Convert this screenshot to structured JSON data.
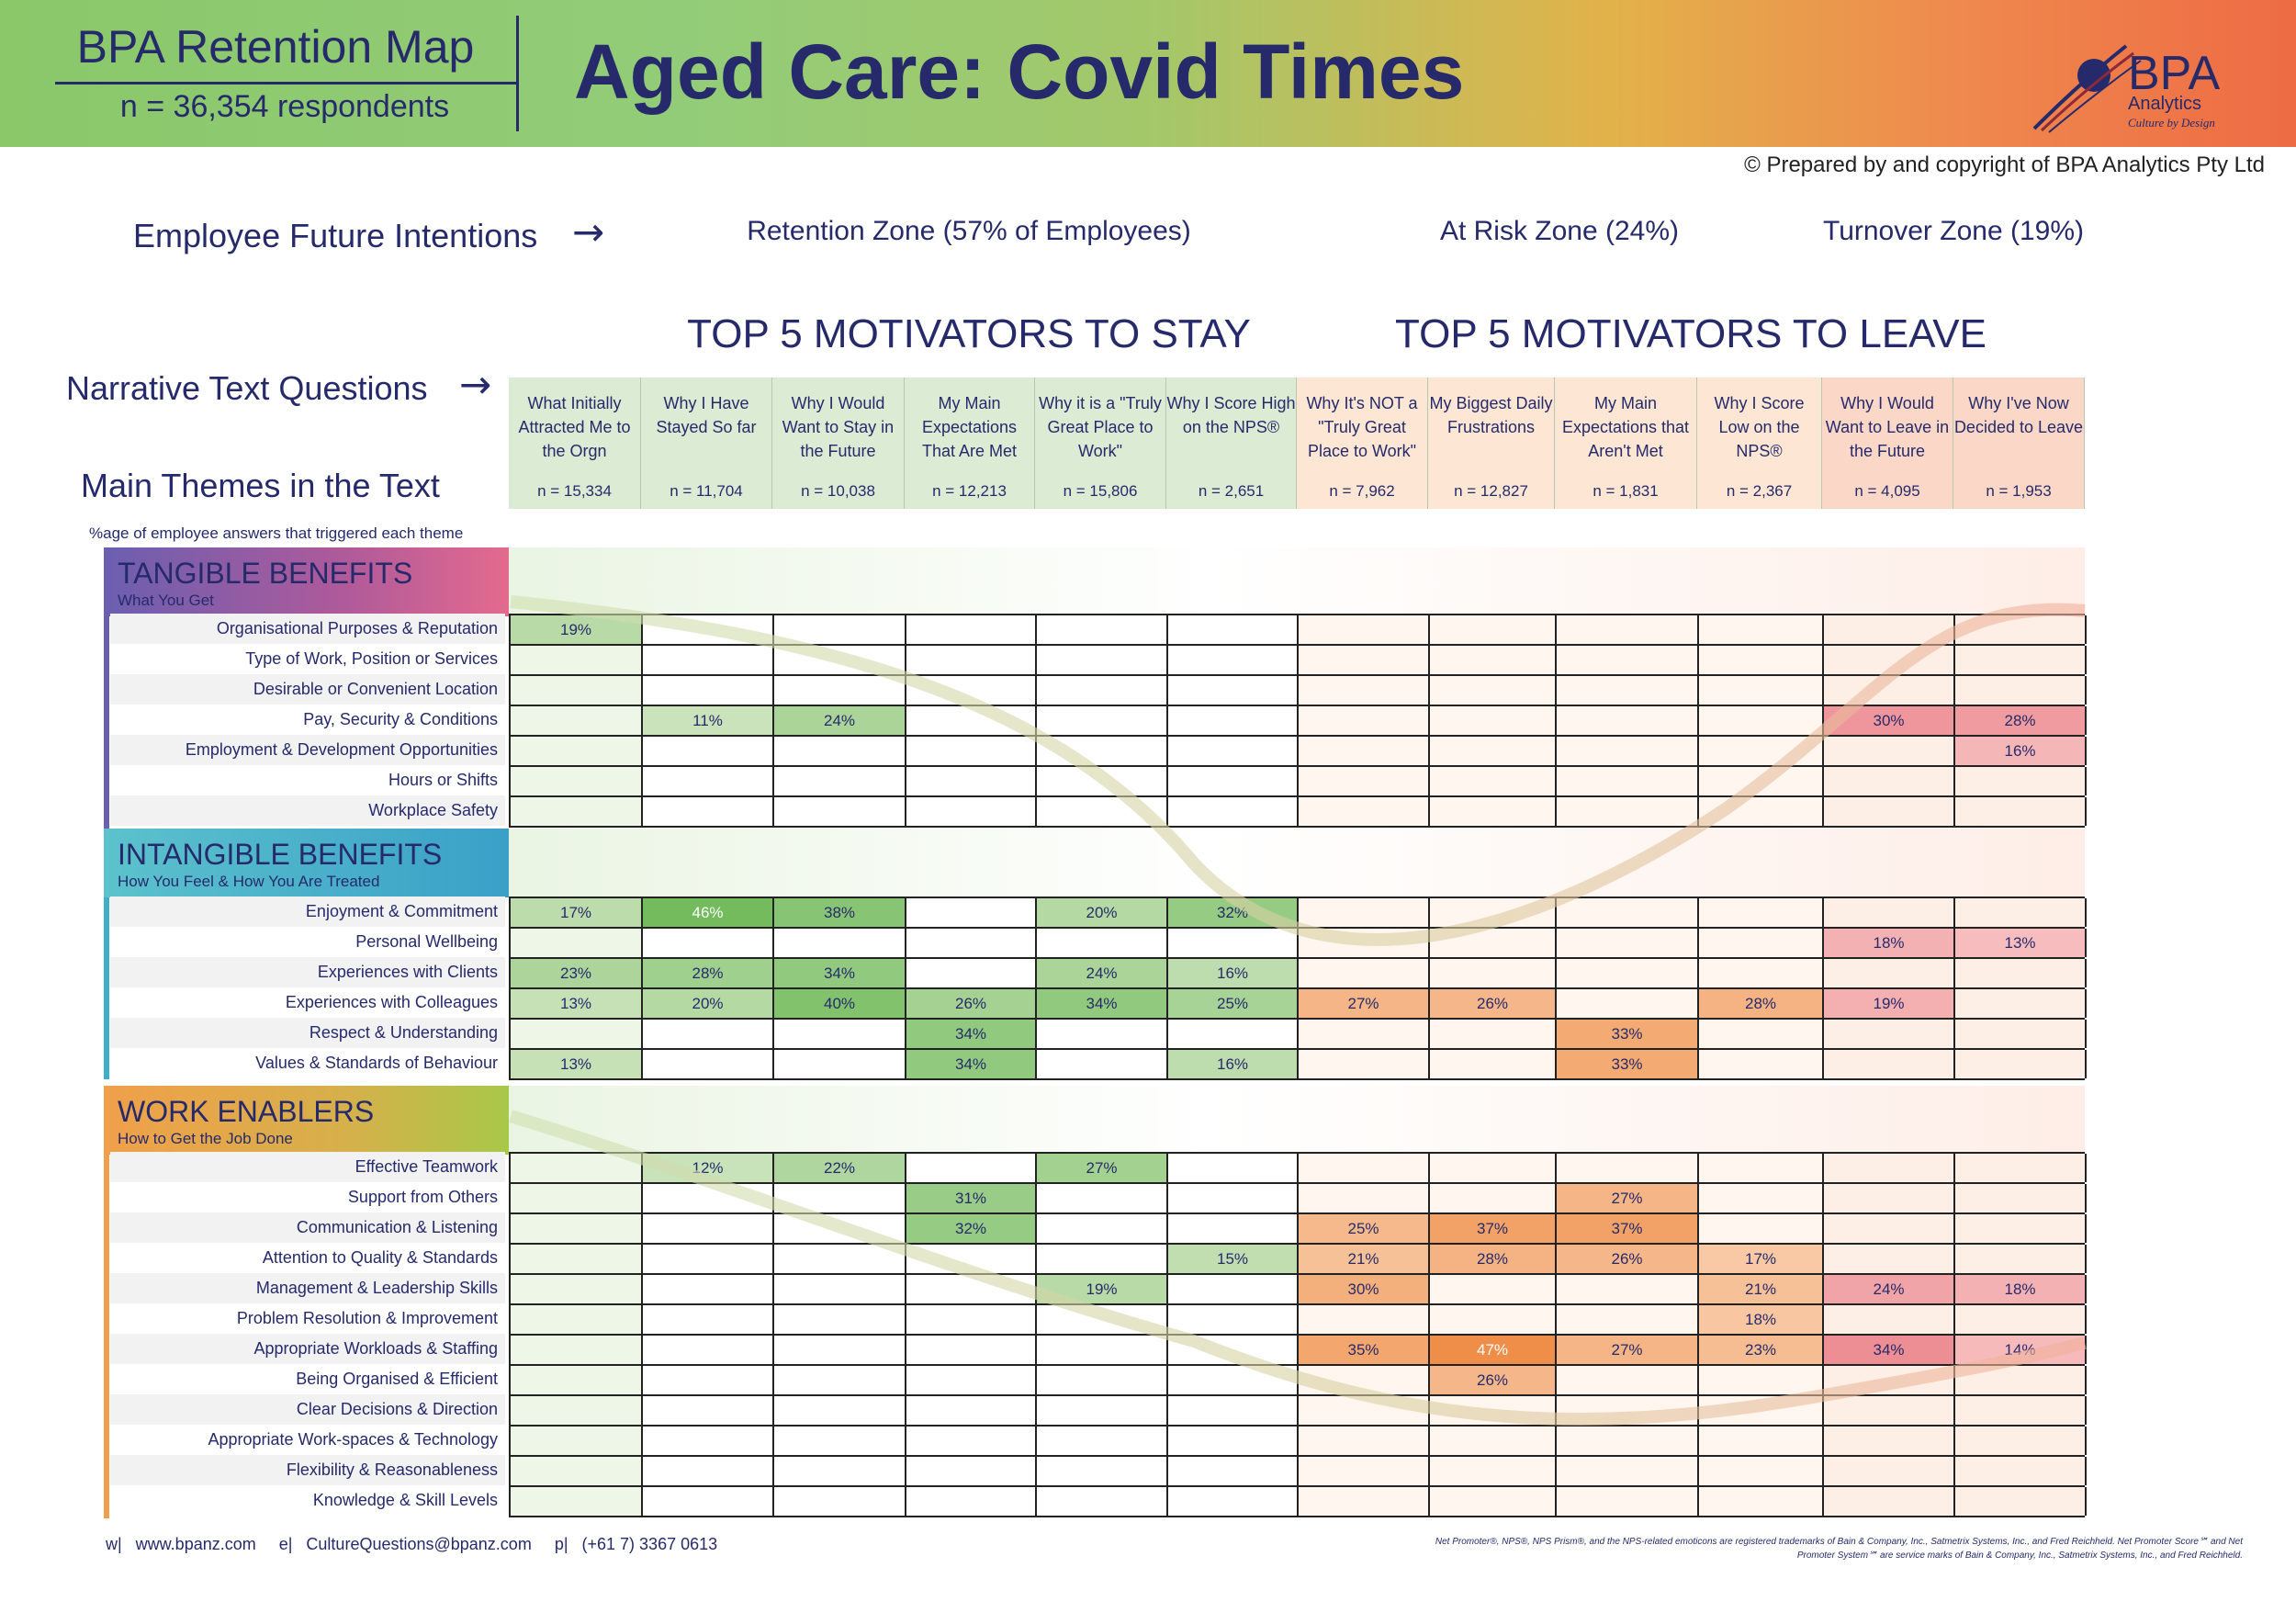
{
  "header": {
    "map_title": "BPA Retention Map",
    "respondents": "n = 36,354 respondents",
    "main_title": "Aged Care: Covid Times",
    "logo_text": "BPA",
    "logo_sub": "Analytics",
    "logo_tagline": "Culture by Design",
    "copyright": "© Prepared by and copyright of BPA Analytics Pty Ltd"
  },
  "labels": {
    "future_intentions": "Employee Future Intentions",
    "narrative_questions": "Narrative Text Questions",
    "main_themes": "Main Themes in the Text",
    "pct_note": "%age of employee answers that triggered each theme",
    "arrow": "→"
  },
  "zones": [
    {
      "label": "Retention Zone (57% of Employees)",
      "color": "#93c87a"
    },
    {
      "label": "At Risk Zone (24%)",
      "color": "#f8ae78"
    },
    {
      "label": "Turnover Zone (19%)",
      "color": "#ef7c5e"
    }
  ],
  "motivators": [
    {
      "label": "TOP 5 MOTIVATORS TO STAY",
      "color": "#6dbb52"
    },
    {
      "label": "TOP 5 MOTIVATORS TO LEAVE",
      "color": "#ec6a44"
    }
  ],
  "colors": {
    "stay_accent": "#6dbb52",
    "leave_accent": "#ec6a44",
    "text": "#262a6b"
  },
  "chart_data": {
    "type": "heatmap",
    "title": "Aged Care: Covid Times",
    "columns": [
      {
        "question": "What Initially Attracted Me to the Orgn",
        "n": "n = 15,334",
        "group": "initial"
      },
      {
        "question": "Why I Have Stayed So far",
        "n": "n = 11,704",
        "group": "stay"
      },
      {
        "question": "Why I Would Want to Stay in the Future",
        "n": "n = 10,038",
        "group": "stay"
      },
      {
        "question": "My Main Expectations That Are Met",
        "n": "n = 12,213",
        "group": "stay"
      },
      {
        "question": "Why it is a \"Truly Great Place to Work\"",
        "n": "n = 15,806",
        "group": "stay"
      },
      {
        "question": "Why I Score High on the NPS®",
        "n": "n = 2,651",
        "group": "stay"
      },
      {
        "question": "Why It's NOT a \"Truly Great Place to Work\"",
        "n": "n = 7,962",
        "group": "risk"
      },
      {
        "question": "My Biggest Daily Frustrations",
        "n": "n = 12,827",
        "group": "risk"
      },
      {
        "question": "My Main Expectations that Aren't Met",
        "n": "n = 1,831",
        "group": "risk"
      },
      {
        "question": "Why I Score Low on the NPS®",
        "n": "n = 2,367",
        "group": "risk"
      },
      {
        "question": "Why I Would Want to Leave in the Future",
        "n": "n = 4,095",
        "group": "turnover"
      },
      {
        "question": "Why I've Now Decided to Leave",
        "n": "n = 1,953",
        "group": "turnover"
      }
    ],
    "sections": [
      {
        "title": "TANGIBLE BENEFITS",
        "subtitle": "What You Get",
        "rows": [
          {
            "label": "Organisational Purposes & Reputation",
            "values": [
              19,
              null,
              null,
              null,
              null,
              null,
              null,
              null,
              null,
              null,
              null,
              null
            ]
          },
          {
            "label": "Type of Work, Position or Services",
            "values": [
              null,
              null,
              null,
              null,
              null,
              null,
              null,
              null,
              null,
              null,
              null,
              null
            ]
          },
          {
            "label": "Desirable or Convenient Location",
            "values": [
              null,
              null,
              null,
              null,
              null,
              null,
              null,
              null,
              null,
              null,
              null,
              null
            ]
          },
          {
            "label": "Pay, Security & Conditions",
            "values": [
              null,
              11,
              24,
              null,
              null,
              null,
              null,
              null,
              null,
              null,
              30,
              28
            ]
          },
          {
            "label": "Employment & Development Opportunities",
            "values": [
              null,
              null,
              null,
              null,
              null,
              null,
              null,
              null,
              null,
              null,
              null,
              16
            ]
          },
          {
            "label": "Hours or Shifts",
            "values": [
              null,
              null,
              null,
              null,
              null,
              null,
              null,
              null,
              null,
              null,
              null,
              null
            ]
          },
          {
            "label": "Workplace Safety",
            "values": [
              null,
              null,
              null,
              null,
              null,
              null,
              null,
              null,
              null,
              null,
              null,
              null
            ]
          }
        ]
      },
      {
        "title": "INTANGIBLE BENEFITS",
        "subtitle": "How You Feel & How You Are Treated",
        "rows": [
          {
            "label": "Enjoyment & Commitment",
            "values": [
              17,
              46,
              38,
              null,
              20,
              32,
              null,
              null,
              null,
              null,
              null,
              null
            ]
          },
          {
            "label": "Personal Wellbeing",
            "values": [
              null,
              null,
              null,
              null,
              null,
              null,
              null,
              null,
              null,
              null,
              18,
              13
            ]
          },
          {
            "label": "Experiences with Clients",
            "values": [
              23,
              28,
              34,
              null,
              24,
              16,
              null,
              null,
              null,
              null,
              null,
              null
            ]
          },
          {
            "label": "Experiences with Colleagues",
            "values": [
              13,
              20,
              40,
              26,
              34,
              25,
              27,
              26,
              null,
              28,
              19,
              null
            ]
          },
          {
            "label": "Respect & Understanding",
            "values": [
              null,
              null,
              null,
              34,
              null,
              null,
              null,
              null,
              33,
              null,
              null,
              null
            ]
          },
          {
            "label": "Values & Standards of Behaviour",
            "values": [
              13,
              null,
              null,
              34,
              null,
              16,
              null,
              null,
              33,
              null,
              null,
              null
            ]
          }
        ]
      },
      {
        "title": "WORK ENABLERS",
        "subtitle": "How to Get the Job Done",
        "rows": [
          {
            "label": "Effective Teamwork",
            "values": [
              null,
              12,
              22,
              null,
              27,
              null,
              null,
              null,
              null,
              null,
              null,
              null
            ]
          },
          {
            "label": "Support from Others",
            "values": [
              null,
              null,
              null,
              31,
              null,
              null,
              null,
              null,
              27,
              null,
              null,
              null
            ]
          },
          {
            "label": "Communication & Listening",
            "values": [
              null,
              null,
              null,
              32,
              null,
              null,
              25,
              37,
              37,
              null,
              null,
              null
            ]
          },
          {
            "label": "Attention to Quality & Standards",
            "values": [
              null,
              null,
              null,
              null,
              null,
              15,
              21,
              28,
              26,
              17,
              null,
              null
            ]
          },
          {
            "label": "Management & Leadership Skills",
            "values": [
              null,
              null,
              null,
              null,
              19,
              null,
              30,
              null,
              null,
              21,
              24,
              18
            ]
          },
          {
            "label": "Problem Resolution & Improvement",
            "values": [
              null,
              null,
              null,
              null,
              null,
              null,
              null,
              null,
              null,
              18,
              null,
              null
            ]
          },
          {
            "label": "Appropriate Workloads & Staffing",
            "values": [
              null,
              null,
              null,
              null,
              null,
              null,
              35,
              47,
              27,
              23,
              34,
              14
            ]
          },
          {
            "label": "Being Organised & Efficient",
            "values": [
              null,
              null,
              null,
              null,
              null,
              null,
              null,
              26,
              null,
              null,
              null,
              null
            ]
          },
          {
            "label": "Clear Decisions & Direction",
            "values": [
              null,
              null,
              null,
              null,
              null,
              null,
              null,
              null,
              null,
              null,
              null,
              null
            ]
          },
          {
            "label": "Appropriate Work-spaces & Technology",
            "values": [
              null,
              null,
              null,
              null,
              null,
              null,
              null,
              null,
              null,
              null,
              null,
              null
            ]
          },
          {
            "label": "Flexibility & Reasonableness",
            "values": [
              null,
              null,
              null,
              null,
              null,
              null,
              null,
              null,
              null,
              null,
              null,
              null
            ]
          },
          {
            "label": "Knowledge & Skill Levels",
            "values": [
              null,
              null,
              null,
              null,
              null,
              null,
              null,
              null,
              null,
              null,
              null,
              null
            ]
          }
        ]
      }
    ]
  },
  "footer": {
    "contact": "w|   www.bpanz.com     e|   CultureQuestions@bpanz.com     p|   (+61 7) 3367 0613",
    "trademark": "Net Promoter®, NPS®, NPS Prism®, and the NPS-related emoticons are registered trademarks of Bain & Company, Inc., Satmetrix Systems, Inc., and Fred Reichheld. Net Promoter Score℠ and Net Promoter System℠ are service marks of Bain & Company, Inc., Satmetrix Systems, Inc., and Fred Reichheld."
  }
}
